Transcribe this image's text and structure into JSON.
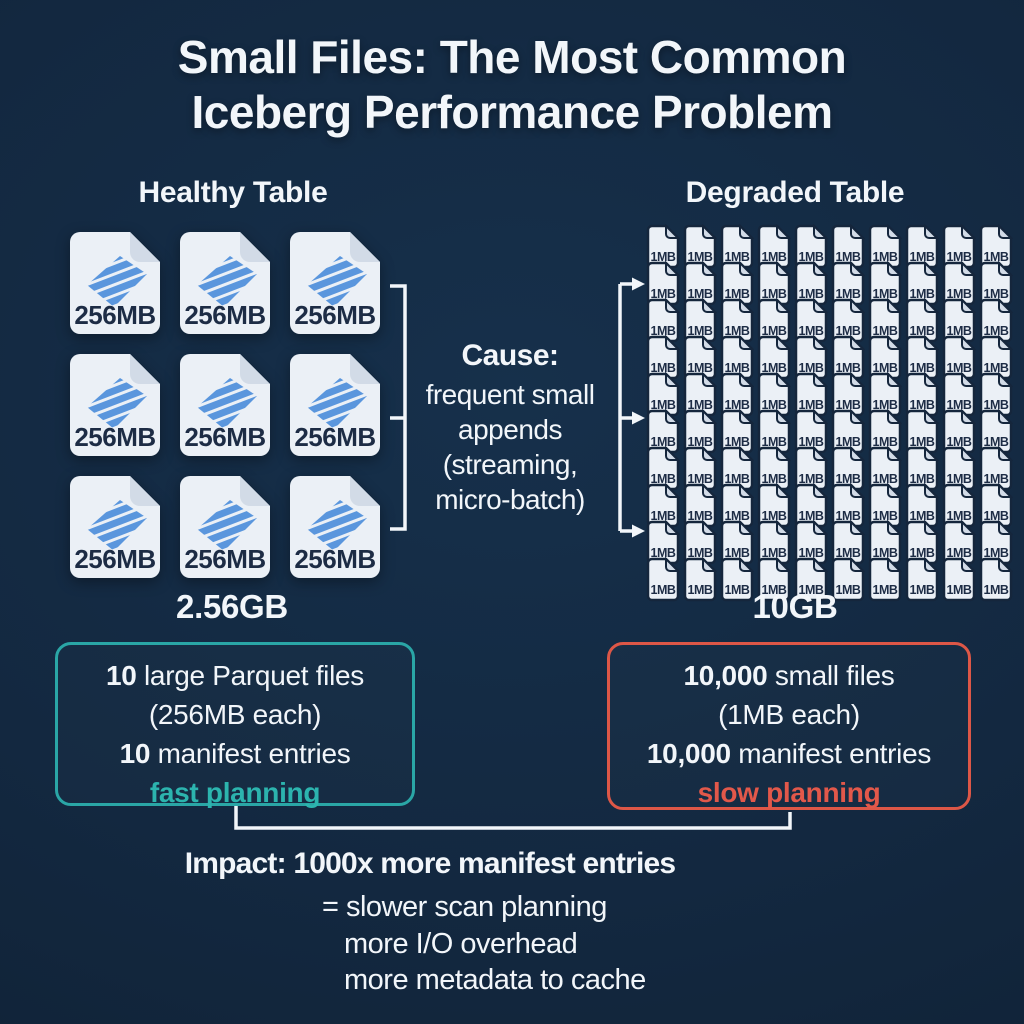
{
  "title": "Small Files: The Most Common Iceberg Performance Problem",
  "healthy": {
    "header": "Healthy Table",
    "file_label": "256MB",
    "file_count": 9,
    "grid": {
      "cols": 3,
      "rows": 3
    },
    "total": "2.56GB",
    "summary": {
      "lines": [
        {
          "bold": "10",
          "text": " large Parquet files"
        },
        {
          "text": "(256MB each)"
        },
        {
          "bold": "10",
          "text": " manifest entries"
        }
      ],
      "status": "fast planning"
    }
  },
  "degraded": {
    "header": "Degraded Table",
    "file_label": "1MB",
    "file_count": 100,
    "grid": {
      "cols": 10,
      "rows": 10
    },
    "total": "10GB",
    "summary": {
      "lines": [
        {
          "bold": "10,000",
          "text": " small files"
        },
        {
          "text": "(1MB each)"
        },
        {
          "bold": "10,000",
          "text": " manifest entries"
        }
      ],
      "status": "slow planning"
    }
  },
  "cause": {
    "label": "Cause:",
    "lines": [
      "frequent small",
      "appends",
      "(streaming,",
      "micro-batch)"
    ]
  },
  "impact": {
    "heading": "Impact: 1000x more manifest entries",
    "lines": [
      "= slower scan planning",
      "more I/O overhead",
      "more metadata to cache"
    ]
  },
  "colors": {
    "background": "#132840",
    "text_light": "#f2f6fa",
    "teal_border": "#2aa6a6",
    "teal_text": "#2cb4ae",
    "red_border": "#dd5747",
    "red_text": "#e2584a",
    "icon_body": "#ebf0f6",
    "icon_fold": "#d2dbe7",
    "icon_outline": "#15263c",
    "icon_label": "#1d2c45",
    "parquet_blue": "#5a96dd",
    "connector": "#f2f6fa"
  }
}
